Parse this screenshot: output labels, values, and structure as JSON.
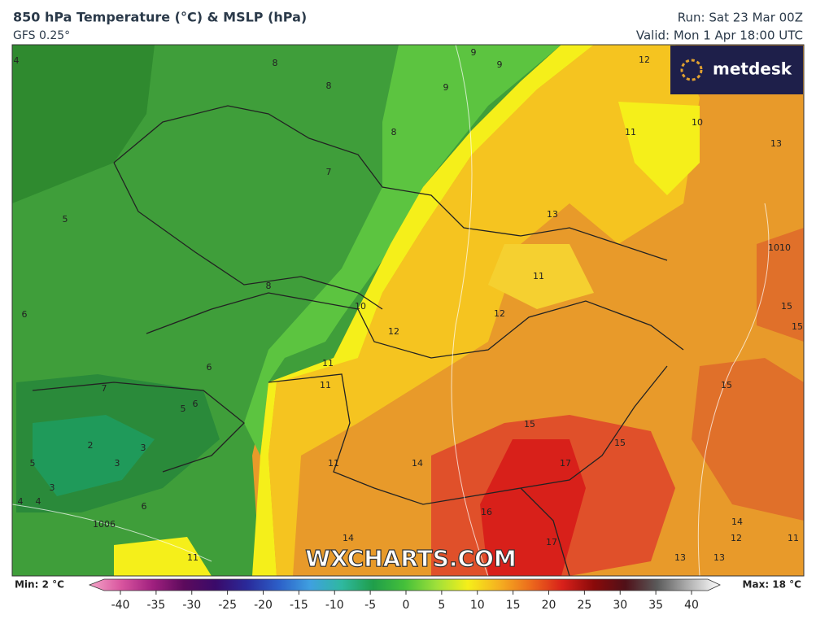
{
  "header": {
    "title": "850 hPa Temperature (°C) & MSLP (hPa)",
    "model": "GFS 0.25°",
    "run": "Run: Sat 23 Mar 00Z",
    "valid": "Valid: Mon 1 Apr 18:00 UTC"
  },
  "logo": "metdesk",
  "watermark": "WXCHARTS.COM",
  "map": {
    "contour_labels": [
      4,
      8,
      9,
      9,
      12,
      8,
      9,
      8,
      10,
      11,
      13,
      7,
      5,
      13,
      1010,
      11,
      8,
      6,
      10,
      12,
      15,
      15,
      12,
      11,
      11,
      6,
      15,
      7,
      5,
      6,
      15,
      2,
      3,
      15,
      5,
      3,
      11,
      14,
      17,
      3,
      4,
      4,
      6,
      16,
      14,
      12,
      11,
      14,
      17,
      13,
      13,
      11,
      1006
    ]
  },
  "colorbar": {
    "min_label": "Min: 2 °C",
    "max_label": "Max: 18 °C",
    "range": [
      -40,
      40
    ],
    "ticks": [
      -40,
      -35,
      -30,
      -25,
      -20,
      -15,
      -10,
      -5,
      0,
      5,
      10,
      15,
      20,
      25,
      30,
      35,
      40
    ],
    "colors": [
      "#f4a6c8",
      "#d9559f",
      "#a0207f",
      "#5c0a5c",
      "#3a0a6a",
      "#2a2a9a",
      "#2c5fc8",
      "#3fa0e0",
      "#2fb8a0",
      "#1f9e4a",
      "#45c03a",
      "#9ee03a",
      "#f5ef1a",
      "#f5b020",
      "#ec6a1c",
      "#d8201a",
      "#8a0a0a",
      "#501018",
      "#5a5a5a",
      "#b0b0b0",
      "#ffffff"
    ]
  }
}
